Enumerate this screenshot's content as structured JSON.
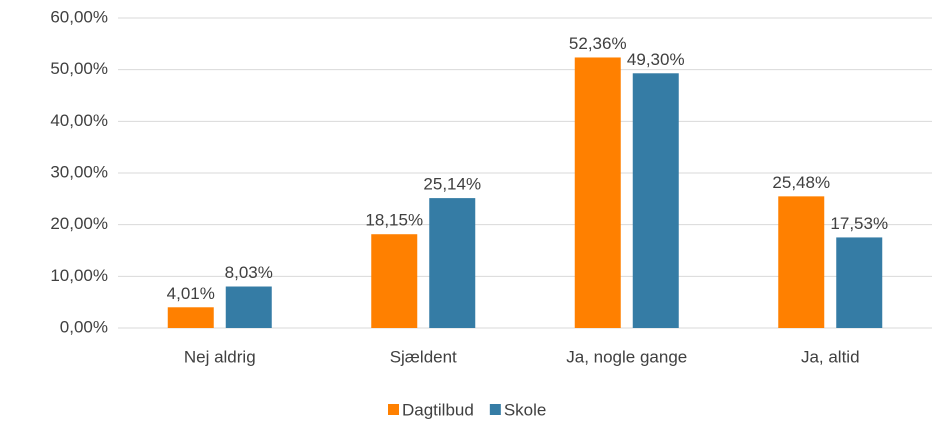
{
  "chart_data": {
    "type": "bar",
    "categories": [
      "Nej aldrig",
      "Sjældent",
      "Ja, nogle gange",
      "Ja, altid"
    ],
    "series": [
      {
        "name": "Dagtilbud",
        "color": "#ff8000",
        "values": [
          4.01,
          18.15,
          52.36,
          25.48
        ],
        "value_labels": [
          "4,01%",
          "18,15%",
          "52,36%",
          "25,48%"
        ]
      },
      {
        "name": "Skole",
        "color": "#357ca5",
        "values": [
          8.03,
          25.14,
          49.3,
          17.53
        ],
        "value_labels": [
          "8,03%",
          "25,14%",
          "49,30%",
          "17,53%"
        ]
      }
    ],
    "ylim": [
      0,
      60
    ],
    "yticks": [
      {
        "value": 0,
        "label": "0,00%"
      },
      {
        "value": 10,
        "label": "10,00%"
      },
      {
        "value": 20,
        "label": "20,00%"
      },
      {
        "value": 30,
        "label": "30,00%"
      },
      {
        "value": 40,
        "label": "40,00%"
      },
      {
        "value": 50,
        "label": "50,00%"
      },
      {
        "value": 60,
        "label": "60,00%"
      }
    ],
    "grid": true,
    "legend": "bottom"
  }
}
